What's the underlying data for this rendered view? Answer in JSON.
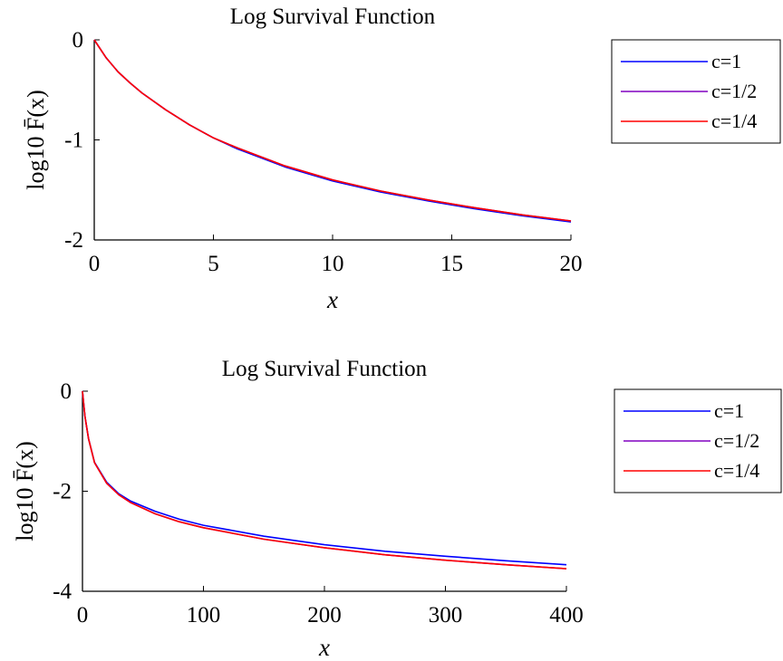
{
  "chart_data": [
    {
      "type": "line",
      "title": "Log Survival Function",
      "xlabel": "x",
      "ylabel": "log10 F̄(x)",
      "xlim": [
        0,
        20
      ],
      "ylim": [
        -2,
        0
      ],
      "xticks": [
        "0",
        "5",
        "10",
        "15",
        "20"
      ],
      "yticks": [
        "0",
        "-1",
        "-2"
      ],
      "grid": false,
      "legend_position": "outside-right",
      "x": [
        0,
        0.5,
        1,
        1.5,
        2,
        3,
        4,
        5,
        6,
        8,
        10,
        12,
        14,
        16,
        18,
        20
      ],
      "series": [
        {
          "name": "c=1",
          "color": "#0000ff",
          "values": [
            0,
            -0.18,
            -0.32,
            -0.43,
            -0.53,
            -0.7,
            -0.85,
            -0.98,
            -1.09,
            -1.27,
            -1.41,
            -1.52,
            -1.61,
            -1.69,
            -1.76,
            -1.82
          ]
        },
        {
          "name": "c=1/2",
          "color": "#8000c0",
          "values": [
            0,
            -0.18,
            -0.32,
            -0.43,
            -0.53,
            -0.7,
            -0.85,
            -0.98,
            -1.08,
            -1.26,
            -1.4,
            -1.51,
            -1.6,
            -1.68,
            -1.75,
            -1.81
          ]
        },
        {
          "name": "c=1/4",
          "color": "#ff0000",
          "values": [
            0,
            -0.18,
            -0.32,
            -0.43,
            -0.53,
            -0.7,
            -0.85,
            -0.98,
            -1.08,
            -1.26,
            -1.4,
            -1.51,
            -1.6,
            -1.68,
            -1.75,
            -1.81
          ]
        }
      ]
    },
    {
      "type": "line",
      "title": "Log Survival Function",
      "xlabel": "x",
      "ylabel": "log10 F̄(x)",
      "xlim": [
        0,
        400
      ],
      "ylim": [
        -4,
        0
      ],
      "xticks": [
        "0",
        "100",
        "200",
        "300",
        "400"
      ],
      "yticks": [
        "0",
        "-2",
        "-4"
      ],
      "grid": false,
      "legend_position": "outside-right",
      "x": [
        0,
        2,
        5,
        10,
        20,
        30,
        40,
        60,
        80,
        100,
        150,
        200,
        250,
        300,
        350,
        400
      ],
      "series": [
        {
          "name": "c=1",
          "color": "#0000ff",
          "values": [
            0,
            -0.5,
            -0.95,
            -1.42,
            -1.82,
            -2.05,
            -2.2,
            -2.4,
            -2.56,
            -2.68,
            -2.9,
            -3.07,
            -3.2,
            -3.3,
            -3.39,
            -3.47
          ]
        },
        {
          "name": "c=1/2",
          "color": "#8000c0",
          "values": [
            0,
            -0.5,
            -0.95,
            -1.43,
            -1.84,
            -2.07,
            -2.23,
            -2.45,
            -2.61,
            -2.73,
            -2.96,
            -3.13,
            -3.27,
            -3.38,
            -3.47,
            -3.55
          ]
        },
        {
          "name": "c=1/4",
          "color": "#ff0000",
          "values": [
            0,
            -0.5,
            -0.95,
            -1.43,
            -1.84,
            -2.07,
            -2.23,
            -2.45,
            -2.61,
            -2.73,
            -2.96,
            -3.13,
            -3.27,
            -3.38,
            -3.47,
            -3.55
          ]
        }
      ]
    }
  ]
}
